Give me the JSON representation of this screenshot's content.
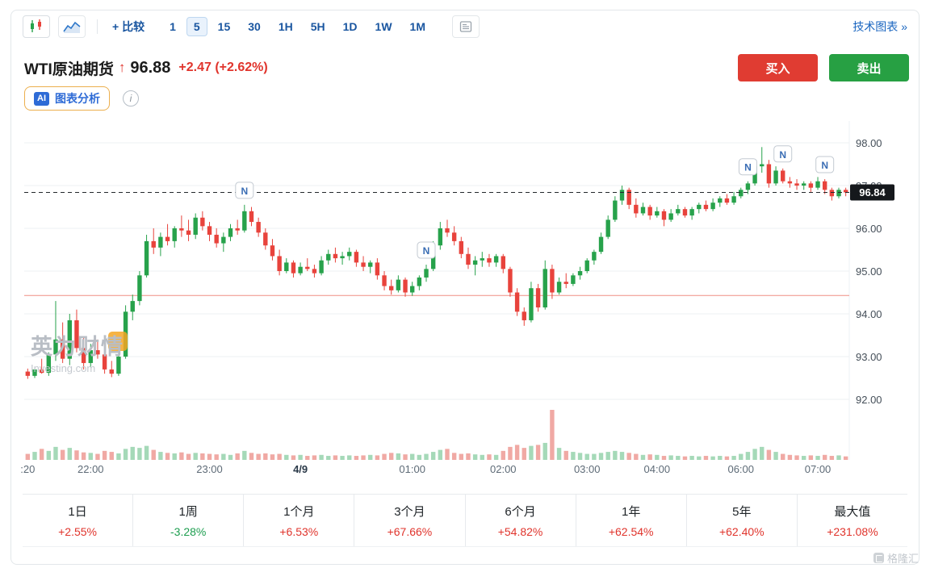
{
  "toolbar": {
    "candlestick_icon": "candlestick-chart",
    "line_icon": "area-chart",
    "compare_label": "+ 比较",
    "intervals": [
      "1",
      "5",
      "15",
      "30",
      "1H",
      "5H",
      "1D",
      "1W",
      "1M"
    ],
    "selected_interval": "5",
    "news_events_icon": "news-events-panel",
    "tech_chart_link": "技术图表 »"
  },
  "header": {
    "symbol": "WTI原油期货",
    "arrow_up": "↑",
    "price": "96.88",
    "change": "+2.47",
    "change_pct": "(+2.62%)",
    "buy_label": "买入",
    "sell_label": "卖出"
  },
  "ai": {
    "badge": "AI",
    "label": "图表分析",
    "info": "i"
  },
  "watermark": {
    "cn": "英为财情",
    "en": "Investing.com"
  },
  "footer": {
    "brand": "格隆汇"
  },
  "performance": {
    "items": [
      {
        "label": "1日",
        "value": "+2.55%",
        "color": "up"
      },
      {
        "label": "1周",
        "value": "-3.28%",
        "color": "down"
      },
      {
        "label": "1个月",
        "value": "+6.53%",
        "color": "up"
      },
      {
        "label": "3个月",
        "value": "+67.66%",
        "color": "up"
      },
      {
        "label": "6个月",
        "value": "+54.82%",
        "color": "up"
      },
      {
        "label": "1年",
        "value": "+62.54%",
        "color": "up"
      },
      {
        "label": "5年",
        "value": "+62.40%",
        "color": "up"
      },
      {
        "label": "最大值",
        "value": "+231.08%",
        "color": "up"
      }
    ]
  },
  "colors": {
    "up_red": "#e0342c",
    "down_green": "#1d9e4f",
    "candle_up": "#27a24b",
    "candle_down": "#e8433c",
    "vol_up": "#a5d9b8",
    "vol_down": "#f0a9a4",
    "accent_blue": "#1a56a0",
    "buy_bg": "#e03c32",
    "sell_bg": "#27a043",
    "tag_bg": "#15181c",
    "prev_close_line": "#ef8d84"
  },
  "chart_data": {
    "type": "candlestick",
    "symbol": "WTI原油期货",
    "interval_minutes": 5,
    "current_price": 96.84,
    "current_price_label": "96.84",
    "prev_close_level": 94.43,
    "y_range": [
      91.9,
      98.5
    ],
    "y_ticks": [
      98,
      97,
      96,
      95,
      94,
      93,
      92
    ],
    "y_tick_labels": [
      "98.00",
      "97.00",
      "96.00",
      "95.00",
      "94.00",
      "93.00",
      "92.00"
    ],
    "x_tick_labels": [
      {
        "label": ":20",
        "index": 0
      },
      {
        "label": "22:00",
        "index": 9
      },
      {
        "label": "23:00",
        "index": 26
      },
      {
        "label": "4/9",
        "index": 39,
        "emphasis": true
      },
      {
        "label": "01:00",
        "index": 55
      },
      {
        "label": "02:00",
        "index": 68
      },
      {
        "label": "03:00",
        "index": 80
      },
      {
        "label": "04:00",
        "index": 90
      },
      {
        "label": "06:00",
        "index": 102
      },
      {
        "label": "07:00",
        "index": 113
      }
    ],
    "news_marker_label": "N",
    "news_marker_indices": [
      31,
      57,
      103,
      108,
      114
    ],
    "candles": [
      [
        92.65,
        92.72,
        92.48,
        92.55
      ],
      [
        92.55,
        92.75,
        92.5,
        92.7
      ],
      [
        92.7,
        92.95,
        92.6,
        92.62
      ],
      [
        92.62,
        93.1,
        92.55,
        93.05
      ],
      [
        93.05,
        94.3,
        92.9,
        93.4
      ],
      [
        93.4,
        93.8,
        92.85,
        92.95
      ],
      [
        92.95,
        94.0,
        92.8,
        93.85
      ],
      [
        93.85,
        94.1,
        93.1,
        93.2
      ],
      [
        93.2,
        93.45,
        92.7,
        92.85
      ],
      [
        92.85,
        93.3,
        92.75,
        93.15
      ],
      [
        93.15,
        93.4,
        92.95,
        93.05
      ],
      [
        93.05,
        93.2,
        92.6,
        92.7
      ],
      [
        92.7,
        92.9,
        92.52,
        92.6
      ],
      [
        92.6,
        93.1,
        92.55,
        93.0
      ],
      [
        93.0,
        94.2,
        92.95,
        94.05
      ],
      [
        94.05,
        94.45,
        93.85,
        94.3
      ],
      [
        94.3,
        95.0,
        94.2,
        94.9
      ],
      [
        94.9,
        95.85,
        94.85,
        95.7
      ],
      [
        95.7,
        96.0,
        95.4,
        95.55
      ],
      [
        95.55,
        95.9,
        95.35,
        95.8
      ],
      [
        95.8,
        96.1,
        95.6,
        95.7
      ],
      [
        95.7,
        96.05,
        95.55,
        96.0
      ],
      [
        96.0,
        96.3,
        95.8,
        95.95
      ],
      [
        95.95,
        96.2,
        95.7,
        95.85
      ],
      [
        95.85,
        96.35,
        95.75,
        96.25
      ],
      [
        96.25,
        96.4,
        95.95,
        96.05
      ],
      [
        96.05,
        96.15,
        95.7,
        95.85
      ],
      [
        95.85,
        96.0,
        95.55,
        95.65
      ],
      [
        95.65,
        95.9,
        95.45,
        95.8
      ],
      [
        95.8,
        96.1,
        95.7,
        96.0
      ],
      [
        96.0,
        96.2,
        95.85,
        95.95
      ],
      [
        95.95,
        96.55,
        95.9,
        96.4
      ],
      [
        96.4,
        96.5,
        96.05,
        96.15
      ],
      [
        96.15,
        96.25,
        95.8,
        95.9
      ],
      [
        95.9,
        96.0,
        95.5,
        95.6
      ],
      [
        95.6,
        95.75,
        95.25,
        95.35
      ],
      [
        95.35,
        95.5,
        94.9,
        95.0
      ],
      [
        95.0,
        95.3,
        94.95,
        95.2
      ],
      [
        95.2,
        95.25,
        94.85,
        94.95
      ],
      [
        94.95,
        95.2,
        94.9,
        95.1
      ],
      [
        95.1,
        95.3,
        95.0,
        95.05
      ],
      [
        95.05,
        95.15,
        94.85,
        94.95
      ],
      [
        94.95,
        95.35,
        94.9,
        95.25
      ],
      [
        95.25,
        95.5,
        95.15,
        95.4
      ],
      [
        95.4,
        95.55,
        95.2,
        95.3
      ],
      [
        95.3,
        95.45,
        95.15,
        95.35
      ],
      [
        95.35,
        95.55,
        95.25,
        95.45
      ],
      [
        95.45,
        95.5,
        95.1,
        95.2
      ],
      [
        95.2,
        95.35,
        95.0,
        95.1
      ],
      [
        95.1,
        95.25,
        94.95,
        95.2
      ],
      [
        95.2,
        95.3,
        94.8,
        94.9
      ],
      [
        94.9,
        95.0,
        94.55,
        94.65
      ],
      [
        94.65,
        94.8,
        94.45,
        94.55
      ],
      [
        94.55,
        94.9,
        94.5,
        94.8
      ],
      [
        94.8,
        94.85,
        94.4,
        94.5
      ],
      [
        94.5,
        94.75,
        94.42,
        94.65
      ],
      [
        94.65,
        94.9,
        94.55,
        94.85
      ],
      [
        94.85,
        95.15,
        94.75,
        95.05
      ],
      [
        95.05,
        95.7,
        95.0,
        95.6
      ],
      [
        95.6,
        96.15,
        95.5,
        96.0
      ],
      [
        96.0,
        96.2,
        95.8,
        95.9
      ],
      [
        95.9,
        96.05,
        95.6,
        95.7
      ],
      [
        95.7,
        95.8,
        95.3,
        95.4
      ],
      [
        95.4,
        95.55,
        95.05,
        95.15
      ],
      [
        95.15,
        95.35,
        94.9,
        95.25
      ],
      [
        95.25,
        95.45,
        95.1,
        95.3
      ],
      [
        95.3,
        95.4,
        95.1,
        95.2
      ],
      [
        95.2,
        95.4,
        95.1,
        95.35
      ],
      [
        95.35,
        95.4,
        94.95,
        95.05
      ],
      [
        95.05,
        95.1,
        94.4,
        94.5
      ],
      [
        94.5,
        94.6,
        93.95,
        94.05
      ],
      [
        94.05,
        94.15,
        93.72,
        93.85
      ],
      [
        93.85,
        94.75,
        93.8,
        94.6
      ],
      [
        94.6,
        94.7,
        94.05,
        94.15
      ],
      [
        94.15,
        95.25,
        94.1,
        95.05
      ],
      [
        95.05,
        95.15,
        94.35,
        94.5
      ],
      [
        94.5,
        94.85,
        94.45,
        94.75
      ],
      [
        94.75,
        94.95,
        94.6,
        94.7
      ],
      [
        94.7,
        94.95,
        94.65,
        94.9
      ],
      [
        94.9,
        95.1,
        94.8,
        95.0
      ],
      [
        95.0,
        95.3,
        94.95,
        95.25
      ],
      [
        95.25,
        95.5,
        95.15,
        95.45
      ],
      [
        95.45,
        95.9,
        95.4,
        95.8
      ],
      [
        95.8,
        96.3,
        95.75,
        96.2
      ],
      [
        96.2,
        96.75,
        96.15,
        96.65
      ],
      [
        96.65,
        97.0,
        96.55,
        96.9
      ],
      [
        96.9,
        96.95,
        96.45,
        96.55
      ],
      [
        96.55,
        96.7,
        96.25,
        96.35
      ],
      [
        96.35,
        96.6,
        96.3,
        96.5
      ],
      [
        96.5,
        96.55,
        96.2,
        96.3
      ],
      [
        96.3,
        96.5,
        96.25,
        96.4
      ],
      [
        96.4,
        96.45,
        96.05,
        96.2
      ],
      [
        96.2,
        96.45,
        96.15,
        96.35
      ],
      [
        96.35,
        96.55,
        96.3,
        96.45
      ],
      [
        96.45,
        96.5,
        96.25,
        96.3
      ],
      [
        96.3,
        96.5,
        96.2,
        96.45
      ],
      [
        96.45,
        96.6,
        96.35,
        96.55
      ],
      [
        96.55,
        96.65,
        96.4,
        96.45
      ],
      [
        96.45,
        96.7,
        96.4,
        96.6
      ],
      [
        96.6,
        96.75,
        96.5,
        96.7
      ],
      [
        96.7,
        96.8,
        96.55,
        96.6
      ],
      [
        96.6,
        96.85,
        96.55,
        96.75
      ],
      [
        96.75,
        96.95,
        96.7,
        96.9
      ],
      [
        96.9,
        97.1,
        96.8,
        97.05
      ],
      [
        97.05,
        97.55,
        97.0,
        97.45
      ],
      [
        97.45,
        97.9,
        97.3,
        97.5
      ],
      [
        97.5,
        97.6,
        96.95,
        97.05
      ],
      [
        97.05,
        97.45,
        97.0,
        97.35
      ],
      [
        97.35,
        97.4,
        97.05,
        97.1
      ],
      [
        97.1,
        97.2,
        96.95,
        97.05
      ],
      [
        97.05,
        97.15,
        96.9,
        97.0
      ],
      [
        97.0,
        97.1,
        96.9,
        97.05
      ],
      [
        97.05,
        97.1,
        96.85,
        96.95
      ],
      [
        96.95,
        97.2,
        96.9,
        97.1
      ],
      [
        97.1,
        97.15,
        96.8,
        96.9
      ],
      [
        96.9,
        96.95,
        96.65,
        96.75
      ],
      [
        96.75,
        96.95,
        96.7,
        96.9
      ],
      [
        96.9,
        96.95,
        96.75,
        96.84
      ]
    ],
    "volumes": [
      12,
      16,
      22,
      18,
      26,
      20,
      24,
      19,
      15,
      14,
      12,
      18,
      16,
      13,
      22,
      26,
      24,
      28,
      20,
      16,
      14,
      13,
      15,
      12,
      14,
      13,
      12,
      11,
      12,
      10,
      13,
      18,
      14,
      12,
      13,
      11,
      12,
      10,
      9,
      10,
      8,
      9,
      10,
      8,
      9,
      8,
      9,
      8,
      9,
      10,
      9,
      12,
      14,
      13,
      11,
      12,
      10,
      12,
      16,
      20,
      22,
      14,
      12,
      13,
      11,
      10,
      11,
      10,
      18,
      26,
      30,
      24,
      28,
      30,
      34,
      100,
      24,
      18,
      16,
      14,
      12,
      12,
      14,
      16,
      18,
      16,
      14,
      12,
      10,
      11,
      10,
      8,
      9,
      8,
      7,
      8,
      7,
      8,
      7,
      8,
      7,
      8,
      12,
      16,
      22,
      26,
      20,
      16,
      12,
      10,
      9,
      8,
      9,
      8,
      10,
      8,
      9,
      7
    ]
  }
}
